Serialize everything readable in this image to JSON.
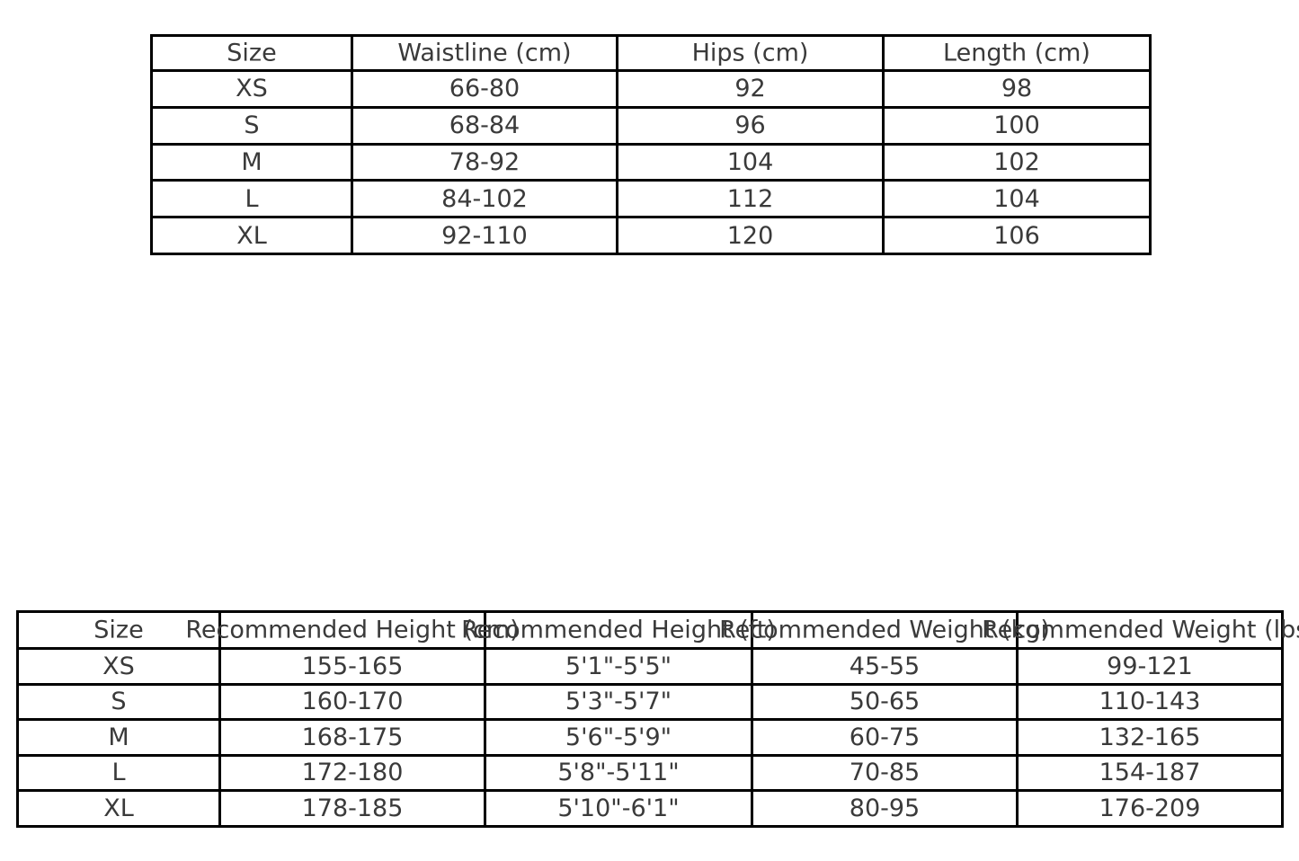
{
  "theme": {
    "background": "#ffffff",
    "text_color": "#3a3a3a",
    "border_color": "#000000"
  },
  "garment_size_table": {
    "headers": [
      "Size",
      "Waistline (cm)",
      "Hips (cm)",
      "Length (cm)"
    ],
    "rows": [
      [
        "XS",
        "66-80",
        "92",
        "98"
      ],
      [
        "S",
        "68-84",
        "96",
        "100"
      ],
      [
        "M",
        "78-92",
        "104",
        "102"
      ],
      [
        "L",
        "84-102",
        "112",
        "104"
      ],
      [
        "XL",
        "92-110",
        "120",
        "106"
      ]
    ]
  },
  "body_size_table": {
    "headers": [
      "Size",
      "Recommended Height (cm)",
      "Recommended Height (ft)",
      "Recommended Weight (kg)",
      "Recommended Weight (lbs)"
    ],
    "rows": [
      [
        "XS",
        "155-165",
        "5'1\"-5'5\"",
        "45-55",
        "99-121"
      ],
      [
        "S",
        "160-170",
        "5'3\"-5'7\"",
        "50-65",
        "110-143"
      ],
      [
        "M",
        "168-175",
        "5'6\"-5'9\"",
        "60-75",
        "132-165"
      ],
      [
        "L",
        "172-180",
        "5'8\"-5'11\"",
        "70-85",
        "154-187"
      ],
      [
        "XL",
        "178-185",
        "5'10\"-6'1\"",
        "80-95",
        "176-209"
      ]
    ]
  }
}
